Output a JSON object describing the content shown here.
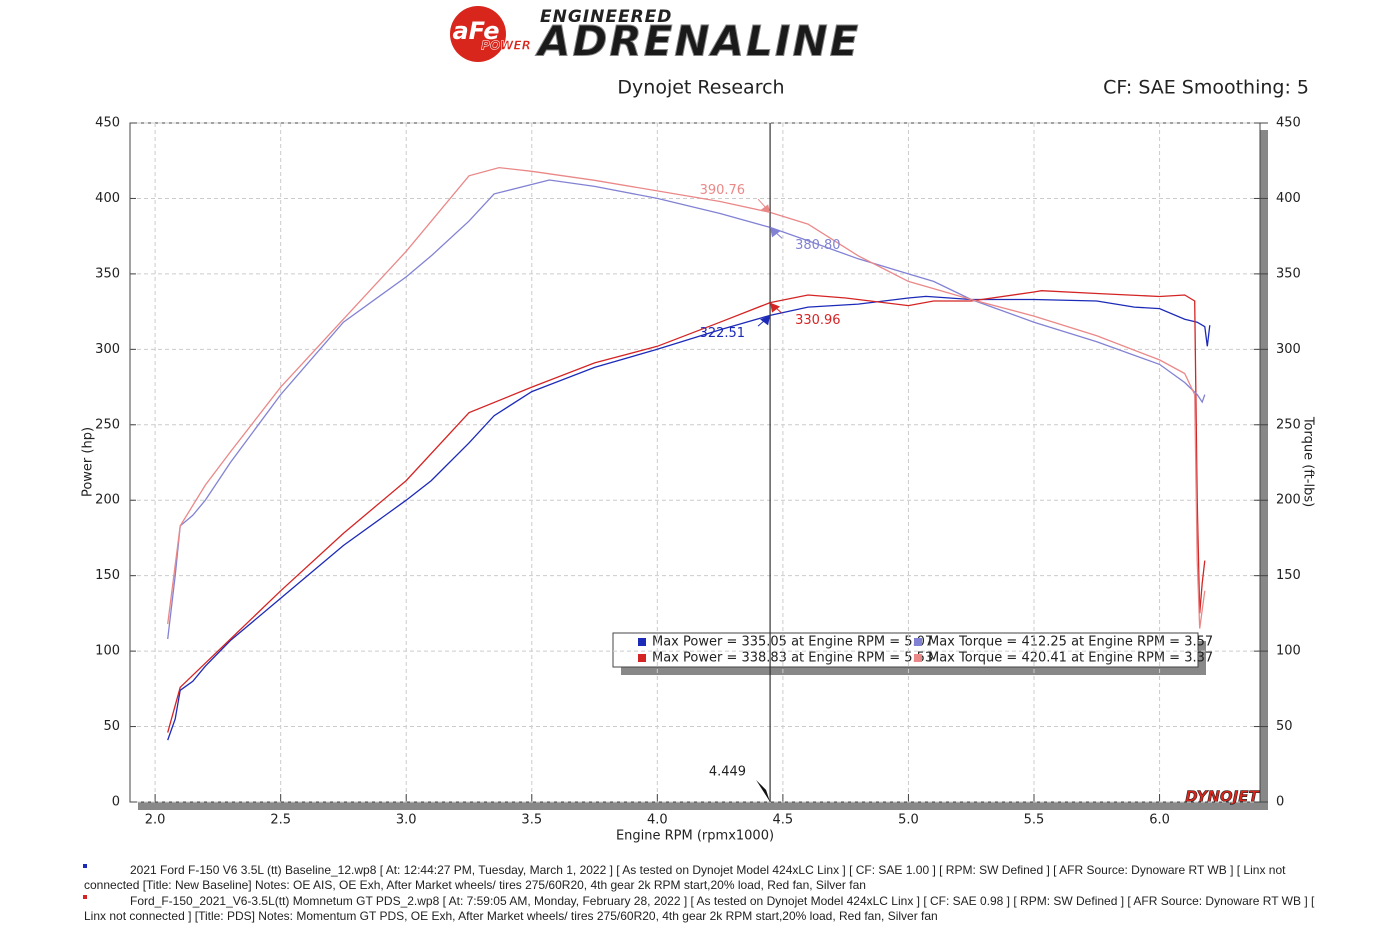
{
  "logo": {
    "badge": "aFe",
    "badge_sub": "POWER",
    "top": "ENGINEERED",
    "main": "ADRENALINE",
    "watermark": "DYNOJET"
  },
  "chart_data": {
    "type": "line",
    "title": "Dynojet Research",
    "subtitle": "CF: SAE Smoothing: 5",
    "x_label": "Engine RPM (rpmx1000)",
    "y_label": "Power (hp)",
    "y2_label": "Torque (ft-lbs)",
    "xlim": [
      1.9,
      6.4
    ],
    "ylim": [
      0,
      450
    ],
    "y2lim": [
      0,
      450
    ],
    "grid": true,
    "xticks": [
      {
        "value": 2,
        "label": "2.0"
      },
      2.5,
      {
        "value": 3,
        "label": "3.0"
      },
      3.5,
      {
        "value": 4,
        "label": "4.0"
      },
      4.5,
      {
        "value": 5,
        "label": "5.0"
      },
      5.5,
      {
        "value": 6,
        "label": "6.0"
      }
    ],
    "yticks": [
      0,
      50,
      100,
      150,
      200,
      250,
      300,
      350,
      400,
      450
    ],
    "y2ticks": [
      0,
      50,
      100,
      150,
      200,
      250,
      300,
      350,
      400,
      450
    ],
    "series": [
      {
        "name": "Max Power = 335.05 at Engine RPM = 5.07",
        "color": "#1c2ab8",
        "x": [
          2.05,
          2.08,
          2.1,
          2.15,
          2.2,
          2.3,
          2.5,
          2.75,
          3.0,
          3.1,
          3.25,
          3.35,
          3.5,
          3.75,
          4.0,
          4.25,
          4.449,
          4.6,
          4.8,
          5.0,
          5.07,
          5.25,
          5.5,
          5.75,
          5.9,
          6.0,
          6.1,
          6.15,
          6.18,
          6.19,
          6.2
        ],
        "values": [
          41,
          55,
          74,
          80,
          90,
          107,
          135,
          170,
          200,
          213,
          238,
          256,
          272,
          288,
          300,
          313,
          322.51,
          328,
          330,
          334,
          335.05,
          333,
          333,
          332,
          328,
          327,
          320,
          318,
          315,
          302,
          316
        ]
      },
      {
        "name": "Max Power = 338.83 at Engine RPM = 5.53",
        "color": "#d42424",
        "x": [
          2.05,
          2.1,
          2.2,
          2.5,
          2.75,
          3.0,
          3.25,
          3.5,
          3.75,
          4.0,
          4.25,
          4.449,
          4.6,
          4.75,
          5.0,
          5.1,
          5.25,
          5.5,
          5.53,
          5.75,
          6.0,
          6.1,
          6.14,
          6.15,
          6.16,
          6.17,
          6.18
        ],
        "values": [
          46,
          76,
          92,
          140,
          178,
          213,
          258,
          275,
          291,
          302,
          318,
          330.96,
          336,
          334,
          329,
          332,
          332,
          338,
          338.83,
          337,
          335,
          336,
          332,
          200,
          125,
          145,
          160
        ]
      },
      {
        "name": "Max Torque = 412.25 at Engine RPM = 3.57",
        "color": "#8282d4",
        "axis": "y2",
        "x": [
          2.05,
          2.08,
          2.1,
          2.15,
          2.2,
          2.3,
          2.5,
          2.75,
          3.0,
          3.1,
          3.25,
          3.35,
          3.57,
          3.75,
          4.0,
          4.25,
          4.449,
          4.6,
          4.8,
          5.0,
          5.1,
          5.25,
          5.5,
          5.75,
          6.0,
          6.1,
          6.15,
          6.17,
          6.18
        ],
        "values": [
          108,
          150,
          183,
          190,
          200,
          225,
          270,
          318,
          348,
          362,
          385,
          403,
          412.25,
          408,
          400,
          390,
          380.8,
          372,
          360,
          350,
          345,
          333,
          318,
          305,
          290,
          278,
          270,
          265,
          270
        ]
      },
      {
        "name": "Max Torque = 420.41 at Engine RPM = 3.37",
        "color": "#ea8888",
        "axis": "y2",
        "x": [
          2.05,
          2.1,
          2.2,
          2.3,
          2.5,
          2.75,
          3.0,
          3.25,
          3.37,
          3.5,
          3.75,
          4.0,
          4.25,
          4.449,
          4.6,
          4.8,
          5.0,
          5.25,
          5.5,
          5.75,
          6.0,
          6.1,
          6.14,
          6.15,
          6.16,
          6.18
        ],
        "values": [
          118,
          183,
          210,
          232,
          275,
          320,
          365,
          415,
          420.41,
          418,
          412,
          405,
          398,
          390.76,
          383,
          362,
          345,
          333,
          322,
          309,
          293,
          284,
          270,
          160,
          115,
          140
        ]
      }
    ],
    "cursor": {
      "x": 4.449,
      "values": [
        390.76,
        380.8,
        330.96,
        322.51
      ],
      "value_labels": [
        "390.76",
        "380.80",
        "330.96",
        "322.51"
      ]
    }
  },
  "notes": [
    "2021 Ford F-150 V6 3.5L (tt) Baseline_12.wp8 [ At: 12:44:27 PM, Tuesday, March 1, 2022 ] [ As tested on Dynojet Model 424xLC Linx ] [ CF: SAE 1.00 ] [ RPM: SW Defined ] [ AFR Source: Dynoware RT WB ] [ Linx not connected [Title: New Baseline]  Notes: OE AIS, OE Exh, After Market wheels/ tires 275/60R20, 4th gear 2k RPM start,20% load, Red fan, Silver fan",
    "Ford_F-150_2021_V6-3.5L(tt) Momnetum GT PDS_2.wp8 [ At: 7:59:05 AM, Monday, February 28, 2022 ] [ As tested on Dynojet Model 424xLC Linx ] [ CF: SAE 0.98 ] [ RPM: SW Defined ] [ AFR Source: Dynoware RT WB ] [ Linx not connected ] [Title: PDS]  Notes: Momentum GT  PDS, OE Exh, After Market wheels/ tires 275/60R20, 4th gear 2k RPM start,20% load, Red fan, Silver fan"
  ]
}
